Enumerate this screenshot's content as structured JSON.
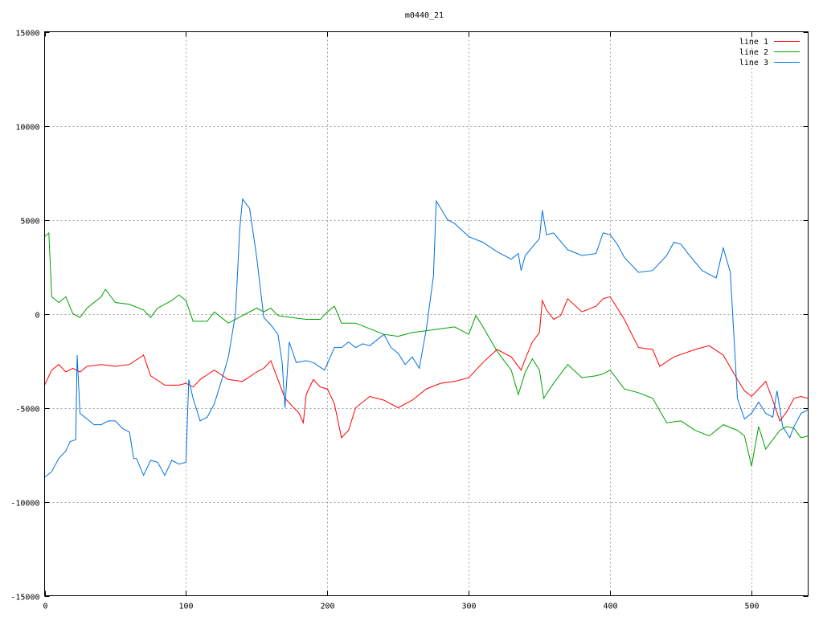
{
  "chart_data": {
    "type": "line",
    "title": "m0440_21",
    "xlabel": "",
    "ylabel": "",
    "xlim": [
      0,
      540
    ],
    "ylim": [
      -15000,
      15000
    ],
    "x_ticks": [
      0,
      100,
      200,
      300,
      400,
      500
    ],
    "y_ticks": [
      -15000,
      -10000,
      -5000,
      0,
      5000,
      10000,
      15000
    ],
    "grid": true,
    "legend_position": "top-right",
    "series": [
      {
        "name": "line 1",
        "color": "#ff0000",
        "points": [
          [
            0,
            -3800
          ],
          [
            5,
            -3000
          ],
          [
            10,
            -2700
          ],
          [
            15,
            -3100
          ],
          [
            20,
            -2900
          ],
          [
            25,
            -3100
          ],
          [
            30,
            -2800
          ],
          [
            40,
            -2700
          ],
          [
            50,
            -2800
          ],
          [
            60,
            -2700
          ],
          [
            70,
            -2200
          ],
          [
            75,
            -3300
          ],
          [
            85,
            -3800
          ],
          [
            95,
            -3800
          ],
          [
            100,
            -3700
          ],
          [
            105,
            -3900
          ],
          [
            110,
            -3500
          ],
          [
            120,
            -3000
          ],
          [
            130,
            -3500
          ],
          [
            140,
            -3600
          ],
          [
            150,
            -3100
          ],
          [
            155,
            -2900
          ],
          [
            160,
            -2500
          ],
          [
            165,
            -3500
          ],
          [
            170,
            -4500
          ],
          [
            175,
            -4900
          ],
          [
            180,
            -5300
          ],
          [
            183,
            -5800
          ],
          [
            185,
            -4300
          ],
          [
            190,
            -3500
          ],
          [
            195,
            -3900
          ],
          [
            200,
            -4000
          ],
          [
            205,
            -4800
          ],
          [
            210,
            -6600
          ],
          [
            215,
            -6200
          ],
          [
            220,
            -5000
          ],
          [
            230,
            -4400
          ],
          [
            240,
            -4600
          ],
          [
            250,
            -5000
          ],
          [
            260,
            -4600
          ],
          [
            270,
            -4000
          ],
          [
            280,
            -3700
          ],
          [
            290,
            -3600
          ],
          [
            300,
            -3400
          ],
          [
            310,
            -2600
          ],
          [
            320,
            -1900
          ],
          [
            330,
            -2300
          ],
          [
            337,
            -3000
          ],
          [
            340,
            -2400
          ],
          [
            345,
            -1500
          ],
          [
            350,
            -1000
          ],
          [
            352,
            700
          ],
          [
            355,
            200
          ],
          [
            360,
            -300
          ],
          [
            365,
            -100
          ],
          [
            370,
            800
          ],
          [
            380,
            100
          ],
          [
            390,
            400
          ],
          [
            395,
            800
          ],
          [
            400,
            900
          ],
          [
            410,
            -300
          ],
          [
            420,
            -1800
          ],
          [
            430,
            -1900
          ],
          [
            435,
            -2800
          ],
          [
            445,
            -2300
          ],
          [
            460,
            -1900
          ],
          [
            470,
            -1700
          ],
          [
            480,
            -2200
          ],
          [
            490,
            -3500
          ],
          [
            495,
            -4100
          ],
          [
            500,
            -4400
          ],
          [
            505,
            -4000
          ],
          [
            510,
            -3600
          ],
          [
            515,
            -4600
          ],
          [
            520,
            -5700
          ],
          [
            525,
            -5200
          ],
          [
            530,
            -4500
          ],
          [
            535,
            -4400
          ],
          [
            540,
            -4500
          ]
        ]
      },
      {
        "name": "line 2",
        "color": "#00a000",
        "points": [
          [
            0,
            4100
          ],
          [
            3,
            4300
          ],
          [
            5,
            900
          ],
          [
            10,
            600
          ],
          [
            15,
            900
          ],
          [
            20,
            0
          ],
          [
            25,
            -200
          ],
          [
            30,
            300
          ],
          [
            40,
            900
          ],
          [
            43,
            1300
          ],
          [
            50,
            600
          ],
          [
            60,
            500
          ],
          [
            70,
            200
          ],
          [
            75,
            -200
          ],
          [
            80,
            300
          ],
          [
            90,
            700
          ],
          [
            95,
            1000
          ],
          [
            100,
            700
          ],
          [
            105,
            -400
          ],
          [
            115,
            -400
          ],
          [
            120,
            100
          ],
          [
            125,
            -200
          ],
          [
            130,
            -500
          ],
          [
            140,
            -100
          ],
          [
            150,
            300
          ],
          [
            155,
            100
          ],
          [
            160,
            300
          ],
          [
            165,
            -100
          ],
          [
            175,
            -200
          ],
          [
            185,
            -300
          ],
          [
            195,
            -300
          ],
          [
            200,
            100
          ],
          [
            205,
            400
          ],
          [
            210,
            -500
          ],
          [
            220,
            -500
          ],
          [
            230,
            -800
          ],
          [
            240,
            -1100
          ],
          [
            250,
            -1200
          ],
          [
            260,
            -1000
          ],
          [
            270,
            -900
          ],
          [
            280,
            -800
          ],
          [
            290,
            -700
          ],
          [
            300,
            -1100
          ],
          [
            305,
            -100
          ],
          [
            310,
            -700
          ],
          [
            320,
            -2000
          ],
          [
            330,
            -3000
          ],
          [
            335,
            -4300
          ],
          [
            340,
            -3100
          ],
          [
            345,
            -2400
          ],
          [
            350,
            -3000
          ],
          [
            353,
            -4500
          ],
          [
            360,
            -3700
          ],
          [
            370,
            -2700
          ],
          [
            380,
            -3400
          ],
          [
            390,
            -3300
          ],
          [
            395,
            -3200
          ],
          [
            400,
            -3000
          ],
          [
            410,
            -4000
          ],
          [
            420,
            -4200
          ],
          [
            430,
            -4500
          ],
          [
            440,
            -5800
          ],
          [
            450,
            -5700
          ],
          [
            460,
            -6200
          ],
          [
            470,
            -6500
          ],
          [
            480,
            -5900
          ],
          [
            490,
            -6200
          ],
          [
            495,
            -6500
          ],
          [
            500,
            -8100
          ],
          [
            505,
            -6000
          ],
          [
            510,
            -7200
          ],
          [
            515,
            -6700
          ],
          [
            520,
            -6200
          ],
          [
            525,
            -6000
          ],
          [
            530,
            -6100
          ],
          [
            535,
            -6600
          ],
          [
            540,
            -6500
          ]
        ]
      },
      {
        "name": "line 3",
        "color": "#0070e0",
        "points": [
          [
            0,
            -8700
          ],
          [
            5,
            -8400
          ],
          [
            10,
            -7700
          ],
          [
            15,
            -7300
          ],
          [
            18,
            -6800
          ],
          [
            22,
            -6700
          ],
          [
            23,
            -2200
          ],
          [
            25,
            -5300
          ],
          [
            30,
            -5600
          ],
          [
            35,
            -5900
          ],
          [
            40,
            -5900
          ],
          [
            45,
            -5700
          ],
          [
            50,
            -5700
          ],
          [
            55,
            -6100
          ],
          [
            60,
            -6300
          ],
          [
            63,
            -7700
          ],
          [
            65,
            -7700
          ],
          [
            70,
            -8600
          ],
          [
            75,
            -7800
          ],
          [
            80,
            -7900
          ],
          [
            85,
            -8600
          ],
          [
            90,
            -7800
          ],
          [
            95,
            -8000
          ],
          [
            100,
            -7900
          ],
          [
            102,
            -3500
          ],
          [
            105,
            -4500
          ],
          [
            110,
            -5700
          ],
          [
            115,
            -5500
          ],
          [
            120,
            -4800
          ],
          [
            125,
            -3600
          ],
          [
            130,
            -2300
          ],
          [
            135,
            0
          ],
          [
            138,
            4500
          ],
          [
            140,
            6100
          ],
          [
            145,
            5600
          ],
          [
            150,
            3000
          ],
          [
            155,
            -200
          ],
          [
            160,
            -600
          ],
          [
            165,
            -1100
          ],
          [
            168,
            -2600
          ],
          [
            170,
            -5000
          ],
          [
            173,
            -1500
          ],
          [
            178,
            -2600
          ],
          [
            185,
            -2500
          ],
          [
            190,
            -2600
          ],
          [
            198,
            -3000
          ],
          [
            205,
            -1800
          ],
          [
            210,
            -1800
          ],
          [
            215,
            -1500
          ],
          [
            220,
            -1800
          ],
          [
            225,
            -1600
          ],
          [
            230,
            -1700
          ],
          [
            240,
            -1100
          ],
          [
            245,
            -1800
          ],
          [
            250,
            -2100
          ],
          [
            255,
            -2700
          ],
          [
            260,
            -2300
          ],
          [
            265,
            -2900
          ],
          [
            270,
            -800
          ],
          [
            275,
            2000
          ],
          [
            277,
            6000
          ],
          [
            285,
            5000
          ],
          [
            290,
            4800
          ],
          [
            300,
            4100
          ],
          [
            310,
            3800
          ],
          [
            320,
            3300
          ],
          [
            330,
            2900
          ],
          [
            335,
            3200
          ],
          [
            337,
            2300
          ],
          [
            340,
            3100
          ],
          [
            350,
            4000
          ],
          [
            352,
            5500
          ],
          [
            355,
            4200
          ],
          [
            360,
            4300
          ],
          [
            370,
            3400
          ],
          [
            380,
            3100
          ],
          [
            390,
            3200
          ],
          [
            395,
            4300
          ],
          [
            400,
            4200
          ],
          [
            405,
            3700
          ],
          [
            410,
            3000
          ],
          [
            420,
            2200
          ],
          [
            430,
            2300
          ],
          [
            440,
            3100
          ],
          [
            445,
            3800
          ],
          [
            450,
            3700
          ],
          [
            455,
            3200
          ],
          [
            465,
            2300
          ],
          [
            470,
            2100
          ],
          [
            475,
            1900
          ],
          [
            480,
            3500
          ],
          [
            485,
            2200
          ],
          [
            490,
            -4500
          ],
          [
            495,
            -5600
          ],
          [
            500,
            -5300
          ],
          [
            505,
            -4700
          ],
          [
            510,
            -5300
          ],
          [
            515,
            -5500
          ],
          [
            518,
            -4100
          ],
          [
            522,
            -6000
          ],
          [
            527,
            -6600
          ],
          [
            530,
            -6000
          ],
          [
            535,
            -5300
          ],
          [
            540,
            -5100
          ]
        ]
      }
    ]
  }
}
